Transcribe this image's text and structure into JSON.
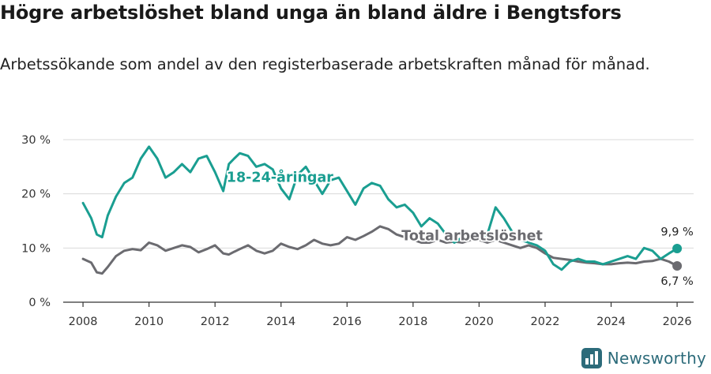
{
  "title": "Högre arbetslöshet bland unga än bland äldre i Bengtsfors",
  "subtitle": "Arbetssökande som andel av den registerbaserade arbetskraften månad för månad.",
  "brand": "Newsworthy",
  "colors": {
    "youth": "#1a9e91",
    "total": "#6b6b70",
    "grid": "#d9d9d9",
    "axis": "#333333",
    "brand": "#2c6b7a"
  },
  "chart_data": {
    "type": "line",
    "title": "Högre arbetslöshet bland unga än bland äldre i Bengtsfors",
    "ylabel": "",
    "xlabel": "",
    "xlim": [
      2007.4,
      2026.5
    ],
    "ylim": [
      0,
      30
    ],
    "yticks": [
      0,
      10,
      20,
      30
    ],
    "ytick_labels": [
      "0 %",
      "10 %",
      "20 %",
      "30 %"
    ],
    "xticks": [
      2008,
      2010,
      2012,
      2014,
      2016,
      2018,
      2020,
      2022,
      2024,
      2026
    ],
    "xtick_labels": [
      "2008",
      "2010",
      "2012",
      "2014",
      "2016",
      "2018",
      "2020",
      "2022",
      "2024",
      "2026"
    ],
    "grid": true,
    "series": [
      {
        "name": "18-24-åringar",
        "label": "18-24-åringar",
        "color": "#1a9e91",
        "end_value": 9.9,
        "end_label": "9,9 %",
        "x": [
          2008.0,
          2008.25,
          2008.42,
          2008.58,
          2008.75,
          2009.0,
          2009.25,
          2009.5,
          2009.75,
          2010.0,
          2010.25,
          2010.5,
          2010.75,
          2011.0,
          2011.25,
          2011.5,
          2011.75,
          2012.0,
          2012.25,
          2012.42,
          2012.58,
          2012.75,
          2013.0,
          2013.25,
          2013.5,
          2013.75,
          2014.0,
          2014.25,
          2014.5,
          2014.75,
          2015.0,
          2015.25,
          2015.5,
          2015.75,
          2016.0,
          2016.25,
          2016.5,
          2016.75,
          2017.0,
          2017.25,
          2017.5,
          2017.75,
          2018.0,
          2018.25,
          2018.5,
          2018.75,
          2019.0,
          2019.25,
          2019.5,
          2019.75,
          2020.0,
          2020.25,
          2020.5,
          2020.75,
          2021.0,
          2021.25,
          2021.5,
          2021.75,
          2022.0,
          2022.25,
          2022.5,
          2022.75,
          2023.0,
          2023.25,
          2023.5,
          2023.75,
          2024.0,
          2024.25,
          2024.5,
          2024.75,
          2025.0,
          2025.25,
          2025.5,
          2025.75,
          2026.0
        ],
        "values": [
          18.3,
          15.5,
          12.5,
          12.0,
          16.0,
          19.5,
          22.0,
          23.0,
          26.5,
          28.7,
          26.5,
          23.0,
          24.0,
          25.5,
          24.0,
          26.5,
          27.0,
          24.0,
          20.5,
          25.5,
          26.5,
          27.5,
          27.0,
          25.0,
          25.5,
          24.5,
          21.0,
          19.0,
          23.5,
          25.0,
          22.5,
          20.0,
          22.5,
          23.0,
          20.5,
          18.0,
          21.0,
          22.0,
          21.5,
          19.0,
          17.5,
          18.0,
          16.5,
          14.0,
          15.5,
          14.5,
          12.5,
          11.0,
          12.0,
          12.5,
          12.0,
          12.5,
          17.5,
          15.5,
          13.0,
          11.5,
          11.0,
          10.5,
          9.5,
          7.0,
          6.0,
          7.5,
          8.0,
          7.5,
          7.5,
          7.0,
          7.5,
          8.0,
          8.5,
          8.0,
          10.0,
          9.5,
          8.0,
          9.0,
          9.9
        ]
      },
      {
        "name": "Total arbetslöshet",
        "label": "Total arbetslöshet",
        "color": "#6b6b70",
        "end_value": 6.7,
        "end_label": "6,7 %",
        "x": [
          2008.0,
          2008.25,
          2008.42,
          2008.58,
          2008.75,
          2009.0,
          2009.25,
          2009.5,
          2009.75,
          2010.0,
          2010.25,
          2010.5,
          2010.75,
          2011.0,
          2011.25,
          2011.5,
          2011.75,
          2012.0,
          2012.25,
          2012.42,
          2012.58,
          2012.75,
          2013.0,
          2013.25,
          2013.5,
          2013.75,
          2014.0,
          2014.25,
          2014.5,
          2014.75,
          2015.0,
          2015.25,
          2015.5,
          2015.75,
          2016.0,
          2016.25,
          2016.5,
          2016.75,
          2017.0,
          2017.25,
          2017.5,
          2017.75,
          2018.0,
          2018.25,
          2018.5,
          2018.75,
          2019.0,
          2019.25,
          2019.5,
          2019.75,
          2020.0,
          2020.25,
          2020.5,
          2020.75,
          2021.0,
          2021.25,
          2021.5,
          2021.75,
          2022.0,
          2022.25,
          2022.5,
          2022.75,
          2023.0,
          2023.25,
          2023.5,
          2023.75,
          2024.0,
          2024.25,
          2024.5,
          2024.75,
          2025.0,
          2025.25,
          2025.5,
          2025.75,
          2026.0
        ],
        "values": [
          8.0,
          7.3,
          5.5,
          5.3,
          6.5,
          8.5,
          9.5,
          9.8,
          9.6,
          11.0,
          10.5,
          9.5,
          10.0,
          10.5,
          10.2,
          9.2,
          9.8,
          10.5,
          9.0,
          8.8,
          9.3,
          9.8,
          10.5,
          9.5,
          9.0,
          9.5,
          10.8,
          10.2,
          9.8,
          10.5,
          11.5,
          10.8,
          10.5,
          10.8,
          12.0,
          11.5,
          12.2,
          13.0,
          14.0,
          13.5,
          12.5,
          12.0,
          11.5,
          11.0,
          11.0,
          11.5,
          11.0,
          11.2,
          11.0,
          11.5,
          11.5,
          11.0,
          11.5,
          11.0,
          10.5,
          10.0,
          10.5,
          10.0,
          9.0,
          8.2,
          8.0,
          7.8,
          7.5,
          7.3,
          7.2,
          7.0,
          7.0,
          7.2,
          7.3,
          7.2,
          7.5,
          7.6,
          8.0,
          7.5,
          6.7
        ]
      }
    ]
  }
}
